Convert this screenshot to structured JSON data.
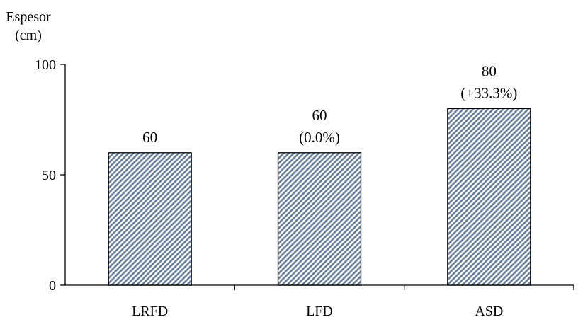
{
  "chart_data": {
    "type": "bar",
    "ylabel_lines": [
      "Espesor",
      "(cm)"
    ],
    "categories": [
      "LRFD",
      "LFD",
      "ASD"
    ],
    "values": [
      60,
      60,
      80
    ],
    "value_labels": [
      "60",
      "60",
      "80"
    ],
    "change_labels": [
      "",
      "(0.0%)",
      "(+33.3%)"
    ],
    "ylim": [
      0,
      100
    ],
    "yticks": [
      0,
      50,
      100
    ],
    "grid": false,
    "legend": "none",
    "bar_fill": "hatched",
    "colors": {
      "bar_hatch": "#6a7f9a",
      "bar_background": "#ffffff",
      "bar_outline": "#000000",
      "axis": "#000000"
    }
  }
}
